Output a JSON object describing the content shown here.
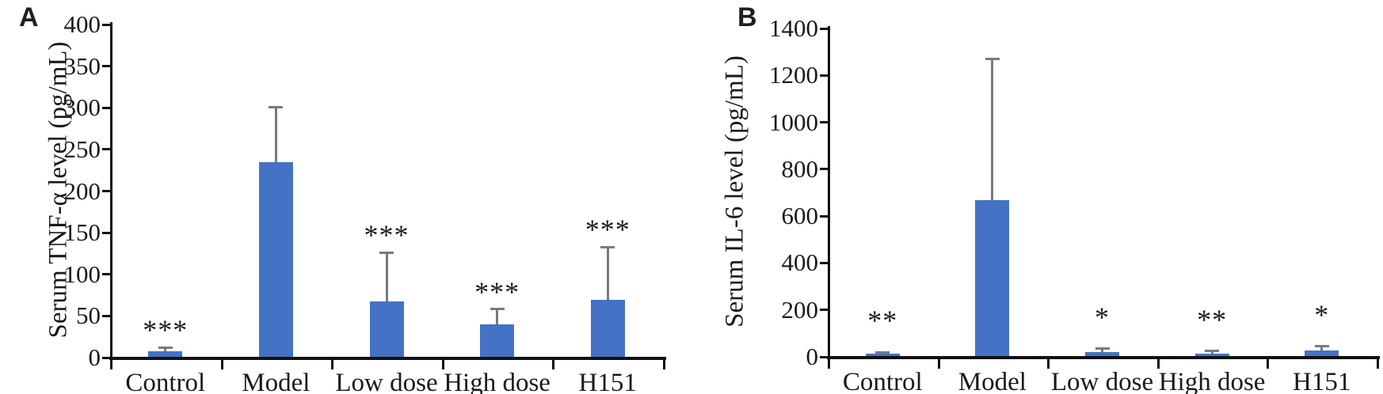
{
  "figure": {
    "panel_count": 2
  },
  "chart_data": [
    {
      "type": "bar",
      "panel_letter": "A",
      "title": "",
      "xlabel": "",
      "ylabel": "Serum TNF-α level (pg/mL)",
      "categories": [
        "Control",
        "Model",
        "Low dose",
        "High dose",
        "H151"
      ],
      "values": [
        8,
        235,
        67,
        40,
        69
      ],
      "error_up": [
        4,
        66,
        59,
        18,
        64
      ],
      "significance": [
        "***",
        "",
        "***",
        "***",
        "***"
      ],
      "ylim": [
        0,
        400
      ],
      "ytick_step": 50,
      "ytick_labels": [
        "0",
        "50",
        "100",
        "150",
        "200",
        "250",
        "300",
        "350",
        "400"
      ],
      "grid": false,
      "legend": false,
      "bar_color": "#4472C4",
      "error_color": "#7a7a7a",
      "axis_color": "#111111"
    },
    {
      "type": "bar",
      "panel_letter": "B",
      "title": "",
      "xlabel": "",
      "ylabel": "Serum IL-6 level (pg/mL)",
      "categories": [
        "Control",
        "Model",
        "Low dose",
        "High dose",
        "H151"
      ],
      "values": [
        12,
        668,
        20,
        15,
        28
      ],
      "error_up": [
        8,
        602,
        15,
        10,
        16
      ],
      "significance": [
        "**",
        "",
        "*",
        "**",
        "*"
      ],
      "ylim": [
        0,
        1400
      ],
      "ytick_step": 200,
      "ytick_labels": [
        "0",
        "200",
        "400",
        "600",
        "800",
        "1000",
        "1200",
        "1400"
      ],
      "grid": false,
      "legend": false,
      "bar_color": "#4472C4",
      "error_color": "#7a7a7a",
      "axis_color": "#111111"
    }
  ]
}
